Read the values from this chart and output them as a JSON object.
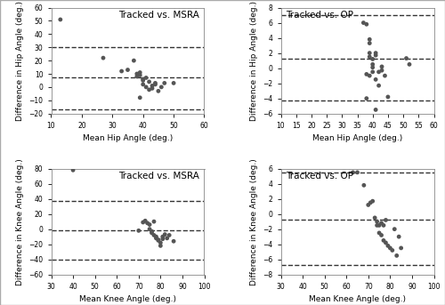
{
  "plots": [
    {
      "title": "Tracked vs. MSRA",
      "xlabel": "Mean Hip Angle (deg.)",
      "ylabel": "Difference in Hip Angle (deg.)",
      "xlim": [
        10,
        60
      ],
      "ylim": [
        -20,
        60
      ],
      "xticks": [
        10,
        20,
        30,
        40,
        50,
        60
      ],
      "yticks": [
        -20,
        -10,
        0,
        10,
        20,
        30,
        40,
        50,
        60
      ],
      "bias": 7,
      "upper_ci": 30,
      "lower_ci": -17,
      "title_loc": "right",
      "scatter_x": [
        13,
        27,
        33,
        35,
        37,
        38,
        38,
        39,
        39,
        39,
        40,
        40,
        40,
        41,
        41,
        42,
        42,
        43,
        43,
        44,
        44,
        45,
        46,
        47,
        50
      ],
      "scatter_y": [
        51,
        22,
        12,
        13,
        20,
        10,
        8,
        11,
        9,
        -8,
        6,
        5,
        2,
        7,
        0,
        4,
        -2,
        1,
        -1,
        2,
        3,
        -3,
        0,
        3,
        3
      ]
    },
    {
      "title": "Tracked vs. OP",
      "xlabel": "Mean Hip Angle (deg.)",
      "ylabel": "Difference in Hip Angle (deg.)",
      "xlim": [
        10,
        60
      ],
      "ylim": [
        -6,
        8
      ],
      "xticks": [
        10,
        15,
        20,
        25,
        30,
        35,
        40,
        45,
        50,
        55,
        60
      ],
      "yticks": [
        -6,
        -4,
        -2,
        0,
        2,
        4,
        6,
        8
      ],
      "bias": 1.3,
      "upper_ci": 7.0,
      "lower_ci": -4.3,
      "title_loc": "left",
      "scatter_x": [
        37,
        38,
        38,
        39,
        39,
        39,
        39,
        40,
        40,
        40,
        40,
        41,
        41,
        41,
        42,
        42,
        43,
        43,
        44,
        45,
        51,
        52,
        38,
        39,
        41
      ],
      "scatter_y": [
        6.0,
        5.8,
        -0.8,
        3.8,
        3.3,
        2.0,
        1.5,
        1.2,
        0.5,
        0.1,
        -0.5,
        2.0,
        1.7,
        -1.5,
        -0.5,
        -2.3,
        0.2,
        -0.3,
        -1.0,
        -3.8,
        1.3,
        0.5,
        -4.0,
        -1.0,
        -5.5
      ]
    },
    {
      "title": "Tracked vs. MSRA",
      "xlabel": "Mean Knee Angle (deg.)",
      "ylabel": "Difference in Knee Angle (deg.)",
      "xlim": [
        30,
        100
      ],
      "ylim": [
        -60,
        80
      ],
      "xticks": [
        30,
        40,
        50,
        60,
        70,
        80,
        90,
        100
      ],
      "yticks": [
        -60,
        -40,
        -20,
        0,
        20,
        40,
        60,
        80
      ],
      "bias": -2,
      "upper_ci": 37,
      "lower_ci": -40,
      "title_loc": "right",
      "scatter_x": [
        40,
        70,
        72,
        73,
        74,
        75,
        75,
        76,
        76,
        77,
        77,
        78,
        78,
        79,
        79,
        80,
        80,
        81,
        81,
        82,
        83,
        84,
        86
      ],
      "scatter_y": [
        78,
        -2,
        9,
        11,
        8,
        6,
        0,
        -3,
        -5,
        10,
        -8,
        -10,
        -12,
        -15,
        -14,
        -18,
        -22,
        -10,
        -13,
        -7,
        -12,
        -8,
        -16
      ]
    },
    {
      "title": "Tracked vs. OP",
      "xlabel": "Mean Knee Angle (deg.)",
      "ylabel": "Difference in Knee Angle (deg.)",
      "xlim": [
        30,
        100
      ],
      "ylim": [
        -8,
        6
      ],
      "xticks": [
        30,
        40,
        50,
        60,
        70,
        80,
        90,
        100
      ],
      "yticks": [
        -8,
        -6,
        -4,
        -2,
        0,
        2,
        4,
        6
      ],
      "bias": -0.7,
      "upper_ci": 5.5,
      "lower_ci": -6.8,
      "title_loc": "left",
      "scatter_x": [
        63,
        65,
        68,
        70,
        71,
        72,
        73,
        74,
        74,
        75,
        75,
        76,
        76,
        77,
        77,
        78,
        78,
        79,
        80,
        81,
        82,
        83,
        84,
        85
      ],
      "scatter_y": [
        5.5,
        5.5,
        3.8,
        1.2,
        1.5,
        1.7,
        -0.5,
        -1.0,
        -1.5,
        -1.5,
        -2.5,
        -1.2,
        -2.8,
        -1.5,
        -3.5,
        -3.8,
        -0.8,
        -4.2,
        -4.5,
        -4.8,
        -2.0,
        -5.5,
        -3.0,
        -4.5
      ]
    }
  ],
  "scatter_color": "#555555",
  "scatter_size": 12,
  "dashed_color": "#333333",
  "dashed_lw": 1.0,
  "dashed_style": "--",
  "bg_color": "#ffffff",
  "font_size": 6.5,
  "title_font_size": 7.5,
  "outer_border_color": "#aaaaaa",
  "outer_border_lw": 1.0
}
